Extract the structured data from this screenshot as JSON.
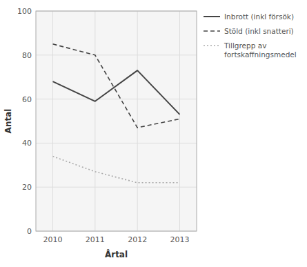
{
  "chart_data": {
    "type": "line",
    "x": [
      2010,
      2011,
      2012,
      2013
    ],
    "xlim": [
      2009.6,
      2013.4
    ],
    "xticks": [
      2010,
      2011,
      2012,
      2013
    ],
    "ylim": [
      0,
      100
    ],
    "yticks": [
      0,
      20,
      40,
      60,
      80,
      100
    ],
    "xlabel": "Årtal",
    "ylabel": "Antal",
    "grid": true,
    "legend": "right",
    "series": [
      {
        "name": "Inbrott (inkl försök)",
        "color": "#444444",
        "line_style": "solid",
        "values": [
          68,
          59,
          73,
          53
        ]
      },
      {
        "name": "Stöld (inkl snatteri)",
        "color": "#444444",
        "line_style": "dashed",
        "values": [
          85,
          80,
          47,
          51
        ]
      },
      {
        "name": "Tillgrepp av\nfortskaffningsmedel",
        "color": "#aaaaaa",
        "line_style": "dotted",
        "values": [
          34,
          27,
          22,
          22
        ]
      }
    ]
  }
}
